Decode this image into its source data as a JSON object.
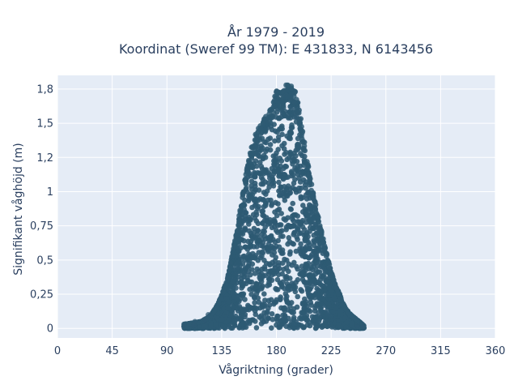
{
  "chart_data": {
    "type": "scatter",
    "title_line1": "År 1979 - 2019",
    "title_line2": "Koordinat (Sweref 99 TM): E 431833, N 6143456",
    "xlabel": "Vågriktning (grader)",
    "ylabel": "Signifikant våghöjd (m)",
    "xlim": [
      0,
      360
    ],
    "ylim": [
      -0.07,
      1.85
    ],
    "x_ticks": [
      0,
      45,
      90,
      135,
      180,
      225,
      270,
      315,
      360
    ],
    "x_tick_labels": [
      "0",
      "45",
      "90",
      "135",
      "180",
      "225",
      "270",
      "315",
      "360"
    ],
    "y_ticks": [
      0,
      0.25,
      0.5,
      0.75,
      1,
      1.25,
      1.5,
      1.75
    ],
    "y_tick_labels": [
      "0",
      "0,25",
      "0,5",
      "0,75",
      "1",
      "1,2",
      "1,5",
      "1,8"
    ],
    "grid": true,
    "marker_color": "#2e5a73",
    "plot_background": "#e5ecf6",
    "envelope": {
      "x": [
        104,
        112,
        118,
        124,
        128,
        132,
        136,
        140,
        144,
        148,
        152,
        156,
        160,
        164,
        168,
        172,
        176,
        180,
        184,
        188,
        192,
        196,
        200,
        204,
        208,
        212,
        216,
        220,
        224,
        228,
        232,
        236,
        240,
        244,
        248,
        252
      ],
      "y": [
        0.03,
        0.04,
        0.05,
        0.08,
        0.12,
        0.18,
        0.27,
        0.38,
        0.55,
        0.75,
        0.98,
        1.18,
        1.35,
        1.45,
        1.5,
        1.57,
        1.62,
        1.74,
        1.72,
        1.78,
        1.79,
        1.73,
        1.55,
        1.3,
        1.1,
        0.92,
        0.75,
        0.6,
        0.45,
        0.33,
        0.25,
        0.16,
        0.11,
        0.08,
        0.05,
        0.02
      ]
    }
  }
}
